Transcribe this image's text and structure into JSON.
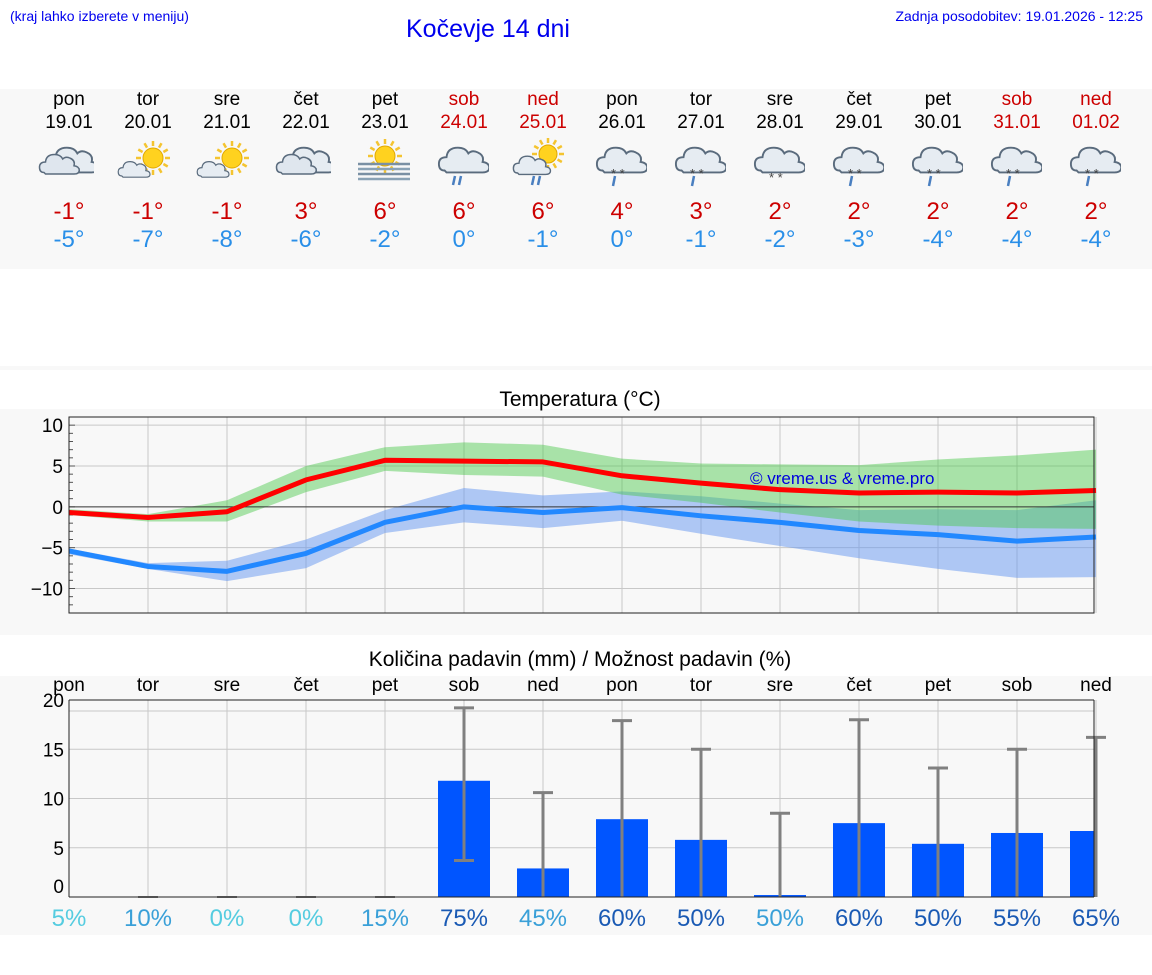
{
  "header": {
    "location_hint": "(kraj lahko izberete v meniju)",
    "title": "Kočevje 14 dni",
    "updated": "Zadnja posodobitev: 19.01.2026 - 12:25"
  },
  "colors": {
    "link": "#0000ee",
    "max": "#cc0000",
    "min": "#2a8fe8",
    "weekend": "#cc0000"
  },
  "days": [
    {
      "name": "pon",
      "date": "19.01",
      "weekend": false,
      "icon": "cloudy-icon",
      "max": "-1°",
      "min": "-5°"
    },
    {
      "name": "tor",
      "date": "20.01",
      "weekend": false,
      "icon": "sun-cloud-icon",
      "max": "-1°",
      "min": "-7°"
    },
    {
      "name": "sre",
      "date": "21.01",
      "weekend": false,
      "icon": "sun-cloud-icon",
      "max": "-1°",
      "min": "-8°"
    },
    {
      "name": "čet",
      "date": "22.01",
      "weekend": false,
      "icon": "cloudy-icon",
      "max": "3°",
      "min": "-6°"
    },
    {
      "name": "pet",
      "date": "23.01",
      "weekend": false,
      "icon": "sun-fog-icon",
      "max": "6°",
      "min": "-2°"
    },
    {
      "name": "sob",
      "date": "24.01",
      "weekend": true,
      "icon": "rain-cloud-icon",
      "max": "6°",
      "min": "0°"
    },
    {
      "name": "ned",
      "date": "25.01",
      "weekend": true,
      "icon": "sun-rain-icon",
      "max": "6°",
      "min": "-1°"
    },
    {
      "name": "pon",
      "date": "26.01",
      "weekend": false,
      "icon": "sleet-cloud-icon",
      "max": "4°",
      "min": "0°"
    },
    {
      "name": "tor",
      "date": "27.01",
      "weekend": false,
      "icon": "sleet-cloud-icon",
      "max": "3°",
      "min": "-1°"
    },
    {
      "name": "sre",
      "date": "28.01",
      "weekend": false,
      "icon": "snow-cloud-icon",
      "max": "2°",
      "min": "-2°"
    },
    {
      "name": "čet",
      "date": "29.01",
      "weekend": false,
      "icon": "sleet-cloud-icon",
      "max": "2°",
      "min": "-3°"
    },
    {
      "name": "pet",
      "date": "30.01",
      "weekend": false,
      "icon": "sleet-cloud-icon",
      "max": "2°",
      "min": "-4°"
    },
    {
      "name": "sob",
      "date": "31.01",
      "weekend": true,
      "icon": "sleet-cloud-icon",
      "max": "2°",
      "min": "-4°"
    },
    {
      "name": "ned",
      "date": "01.02",
      "weekend": true,
      "icon": "sleet-cloud-icon",
      "max": "2°",
      "min": "-4°"
    }
  ],
  "chart_data": [
    {
      "type": "line",
      "title": "Temperatura (°C)",
      "watermark": "© vreme.us & vreme.pro",
      "ylim": [
        -13,
        11
      ],
      "yticks": [
        10,
        5,
        0,
        -5,
        -10
      ],
      "ytick_labels": [
        "10",
        "5",
        "0",
        "−5",
        "−10"
      ],
      "x": [
        0,
        1,
        2,
        3,
        4,
        5,
        6,
        7,
        8,
        9,
        10,
        11,
        12,
        13
      ],
      "series": [
        {
          "name": "max",
          "color": "#ff0000",
          "values": [
            -0.7,
            -1.3,
            -0.6,
            3.3,
            5.7,
            5.6,
            5.5,
            3.8,
            2.9,
            2.1,
            1.7,
            1.8,
            1.7,
            2.0
          ],
          "band_low": [
            -1.0,
            -1.8,
            -1.8,
            1.8,
            4.4,
            3.9,
            3.7,
            1.5,
            0.5,
            -0.7,
            -1.8,
            -2.3,
            -2.6,
            -2.7
          ],
          "band_high": [
            -0.3,
            -0.9,
            0.8,
            5.0,
            7.3,
            7.9,
            7.6,
            5.9,
            5.3,
            5.2,
            5.1,
            5.8,
            6.3,
            7.0
          ]
        },
        {
          "name": "min",
          "color": "#2288ff",
          "values": [
            -5.4,
            -7.3,
            -7.9,
            -5.7,
            -1.9,
            0.0,
            -0.7,
            -0.1,
            -1.1,
            -1.9,
            -2.9,
            -3.4,
            -4.2,
            -3.7
          ],
          "band_low": [
            -5.8,
            -7.6,
            -9.1,
            -7.5,
            -3.2,
            -1.9,
            -2.6,
            -1.7,
            -3.3,
            -4.8,
            -6.3,
            -7.6,
            -8.7,
            -8.6
          ],
          "band_high": [
            -5.1,
            -6.9,
            -6.6,
            -4.0,
            -0.4,
            2.3,
            1.4,
            1.9,
            1.3,
            0.4,
            -0.4,
            -0.3,
            -0.4,
            0.8
          ]
        }
      ]
    },
    {
      "type": "bar",
      "title": "Količina padavin (mm) / Možnost padavin (%)",
      "ylim": [
        0,
        20
      ],
      "yticks": [
        0,
        5,
        10,
        15,
        20
      ],
      "ytick_labels": [
        "0",
        "5",
        "10",
        "15",
        "20"
      ],
      "categories": [
        "pon",
        "tor",
        "sre",
        "čet",
        "pet",
        "sob",
        "ned",
        "pon",
        "tor",
        "sre",
        "čet",
        "pet",
        "sob",
        "ned"
      ],
      "values": [
        0,
        0,
        0,
        0,
        0,
        11.8,
        2.9,
        7.9,
        5.8,
        0.2,
        7.5,
        5.4,
        6.5,
        6.7
      ],
      "error_high": [
        0,
        0.1,
        0.1,
        0.1,
        0.1,
        19.2,
        10.6,
        17.9,
        15.0,
        8.5,
        18.0,
        13.1,
        15.0,
        16.2
      ],
      "error_low": [
        0,
        0,
        0,
        0,
        0,
        3.7,
        0,
        0,
        0,
        0,
        0,
        0,
        0,
        0
      ],
      "chance": [
        "5%",
        "10%",
        "0%",
        "0%",
        "15%",
        "75%",
        "45%",
        "60%",
        "50%",
        "50%",
        "60%",
        "50%",
        "55%",
        "65%"
      ],
      "chance_colors": [
        "#55cce0",
        "#3aa0d8",
        "#55cce0",
        "#55cce0",
        "#3aa0d8",
        "#1a5ab4",
        "#3aa0d8",
        "#1a5ab4",
        "#1a5ab4",
        "#3aa0d8",
        "#1a5ab4",
        "#1a5ab4",
        "#1a5ab4",
        "#1a5ab4"
      ]
    }
  ]
}
